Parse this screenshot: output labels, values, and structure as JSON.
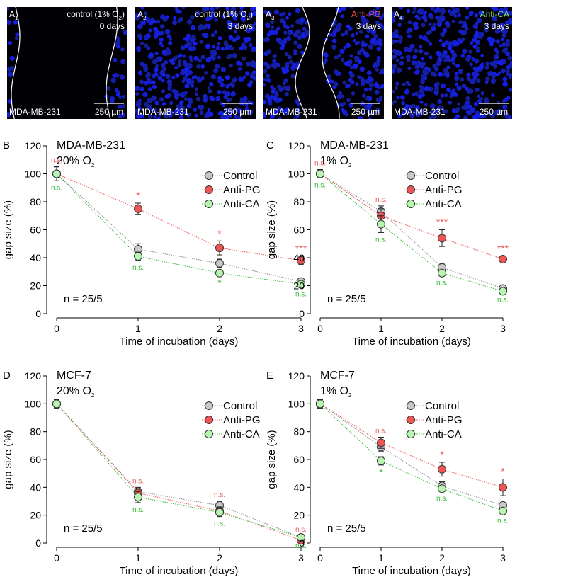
{
  "micrographs": [
    {
      "label": "A",
      "sub": "1",
      "condition": "control (1% O",
      "condition_sub": "2",
      "condition_close": ")",
      "time": "0 days",
      "cell_line": "MDA-MB-231",
      "scale_bar": "250 µm",
      "condition_color": "#ffffff",
      "density": 0.02
    },
    {
      "label": "A",
      "sub": "2",
      "condition": "control (1% O",
      "condition_sub": "2",
      "condition_close": ")",
      "time": "3 days",
      "cell_line": "MDA-MB-231",
      "scale_bar": "250 µm",
      "condition_color": "#ffffff",
      "density": 1.0
    },
    {
      "label": "A",
      "sub": "3",
      "condition": "Anti-PG",
      "condition_sub": "",
      "condition_close": "",
      "time": "3 days",
      "cell_line": "MDA-MB-231",
      "scale_bar": "250 µm",
      "condition_color": "#ee5a4a",
      "density": 0.55
    },
    {
      "label": "A",
      "sub": "4",
      "condition": "Anti-CA",
      "condition_sub": "",
      "condition_close": "",
      "time": "3 days",
      "cell_line": "MDA-MB-231",
      "scale_bar": "250 µm",
      "condition_color": "#7fe07a",
      "density": 1.0
    }
  ],
  "colors": {
    "control": "#c8c8c8",
    "anti_pg": "#ee5555",
    "anti_ca": "#b8f5b0",
    "control_line": "#8a8a9a",
    "anti_pg_line": "#ee5555",
    "anti_ca_line": "#33bb33",
    "anti_pg_ann": "#e86060",
    "anti_ca_ann": "#33bb33"
  },
  "chart_data": [
    {
      "panel": "B",
      "type": "line",
      "title": "MDA-MB-231",
      "subtitle": "20% O",
      "subtitle_sub": "2",
      "xlabel": "Time of incubation (days)",
      "ylabel": "gap size (%)",
      "x": [
        0,
        1,
        2,
        3
      ],
      "xlim": [
        0,
        3
      ],
      "ylim": [
        0,
        120
      ],
      "yticks": [
        0,
        20,
        40,
        60,
        80,
        100,
        120
      ],
      "n_label": "n = 25/5",
      "legend": [
        "Control",
        "Anti-PG",
        "Anti-CA"
      ],
      "legend_position": "top-right",
      "series": [
        {
          "name": "Control",
          "values": [
            100,
            46,
            36,
            23
          ],
          "errors": [
            5,
            4,
            3,
            2
          ]
        },
        {
          "name": "Anti-PG",
          "values": [
            100,
            75,
            47,
            38
          ],
          "errors": [
            5,
            4,
            5,
            3
          ]
        },
        {
          "name": "Anti-CA",
          "values": [
            100,
            41,
            29,
            21
          ],
          "errors": [
            5,
            3,
            2,
            2
          ]
        }
      ],
      "annotations": {
        "anti_pg": [
          "n.s.",
          "*",
          "*",
          "***"
        ],
        "anti_ca": [
          "n.s.",
          "n.s.",
          "*",
          "n.s."
        ]
      }
    },
    {
      "panel": "C",
      "type": "line",
      "title": "MDA-MB-231",
      "subtitle": "1% O",
      "subtitle_sub": "2",
      "xlabel": "Time of incubation (days)",
      "ylabel": "gap size (%)",
      "x": [
        0,
        1,
        2,
        3
      ],
      "xlim": [
        0,
        3
      ],
      "ylim": [
        0,
        120
      ],
      "yticks": [
        0,
        20,
        40,
        60,
        80,
        100,
        120
      ],
      "n_label": "n = 25/5",
      "legend": [
        "Control",
        "Anti-PG",
        "Anti-CA"
      ],
      "legend_position": "top-right",
      "series": [
        {
          "name": "Control",
          "values": [
            100,
            73,
            33,
            18
          ],
          "errors": [
            3,
            4,
            3,
            1
          ]
        },
        {
          "name": "Anti-PG",
          "values": [
            100,
            70,
            54,
            39
          ],
          "errors": [
            3,
            5,
            6,
            2
          ]
        },
        {
          "name": "Anti-CA",
          "values": [
            100,
            64,
            29,
            16
          ],
          "errors": [
            3,
            6,
            2,
            1
          ]
        }
      ],
      "annotations": {
        "anti_pg": [
          "n.s.",
          "n.s.",
          "***",
          "***"
        ],
        "anti_ca": [
          "n.s.",
          "n.s.",
          "n.s.",
          "n.s."
        ]
      }
    },
    {
      "panel": "D",
      "type": "line",
      "title": "MCF-7",
      "subtitle": "20% O",
      "subtitle_sub": "2",
      "xlabel": "Time of incubation (days)",
      "ylabel": "gap size (%)",
      "x": [
        0,
        1,
        2,
        3
      ],
      "xlim": [
        0,
        3
      ],
      "ylim": [
        0,
        120
      ],
      "yticks": [
        0,
        20,
        40,
        60,
        80,
        100,
        120
      ],
      "n_label": "n = 25/5",
      "legend": [
        "Control",
        "Anti-PG",
        "Anti-CA"
      ],
      "legend_position": "top-right",
      "series": [
        {
          "name": "Control",
          "values": [
            100,
            37,
            27,
            4
          ],
          "errors": [
            3,
            3,
            3,
            1
          ]
        },
        {
          "name": "Anti-PG",
          "values": [
            100,
            36,
            23,
            2
          ],
          "errors": [
            3,
            3,
            3,
            1
          ]
        },
        {
          "name": "Anti-CA",
          "values": [
            100,
            33,
            22,
            4
          ],
          "errors": [
            3,
            4,
            3,
            1
          ]
        }
      ],
      "annotations": {
        "anti_pg": [
          "",
          "n.s.",
          "n.s.",
          "n.s."
        ],
        "anti_ca": [
          "",
          "n.s.",
          "n.s.",
          "n.s."
        ]
      }
    },
    {
      "panel": "E",
      "type": "line",
      "title": "MCF-7",
      "subtitle": "1% O",
      "subtitle_sub": "2",
      "xlabel": "Time of incubation (days)",
      "ylabel": "gap size (%)",
      "x": [
        0,
        1,
        2,
        3
      ],
      "xlim": [
        0,
        3
      ],
      "ylim": [
        0,
        120
      ],
      "yticks": [
        0,
        20,
        40,
        60,
        80,
        100,
        120
      ],
      "n_label": "n = 25/5",
      "legend": [
        "Control",
        "Anti-PG",
        "Anti-CA"
      ],
      "legend_position": "top-right",
      "series": [
        {
          "name": "Control",
          "values": [
            100,
            69,
            41,
            27
          ],
          "errors": [
            3,
            3,
            3,
            2
          ]
        },
        {
          "name": "Anti-PG",
          "values": [
            100,
            72,
            53,
            40
          ],
          "errors": [
            3,
            4,
            5,
            6
          ]
        },
        {
          "name": "Anti-CA",
          "values": [
            100,
            59,
            39,
            23
          ],
          "errors": [
            3,
            3,
            2,
            2
          ]
        }
      ],
      "annotations": {
        "anti_pg": [
          "",
          "n.s.",
          "*",
          "*"
        ],
        "anti_ca": [
          "",
          "*",
          "n.s.",
          "n.s."
        ]
      }
    }
  ]
}
